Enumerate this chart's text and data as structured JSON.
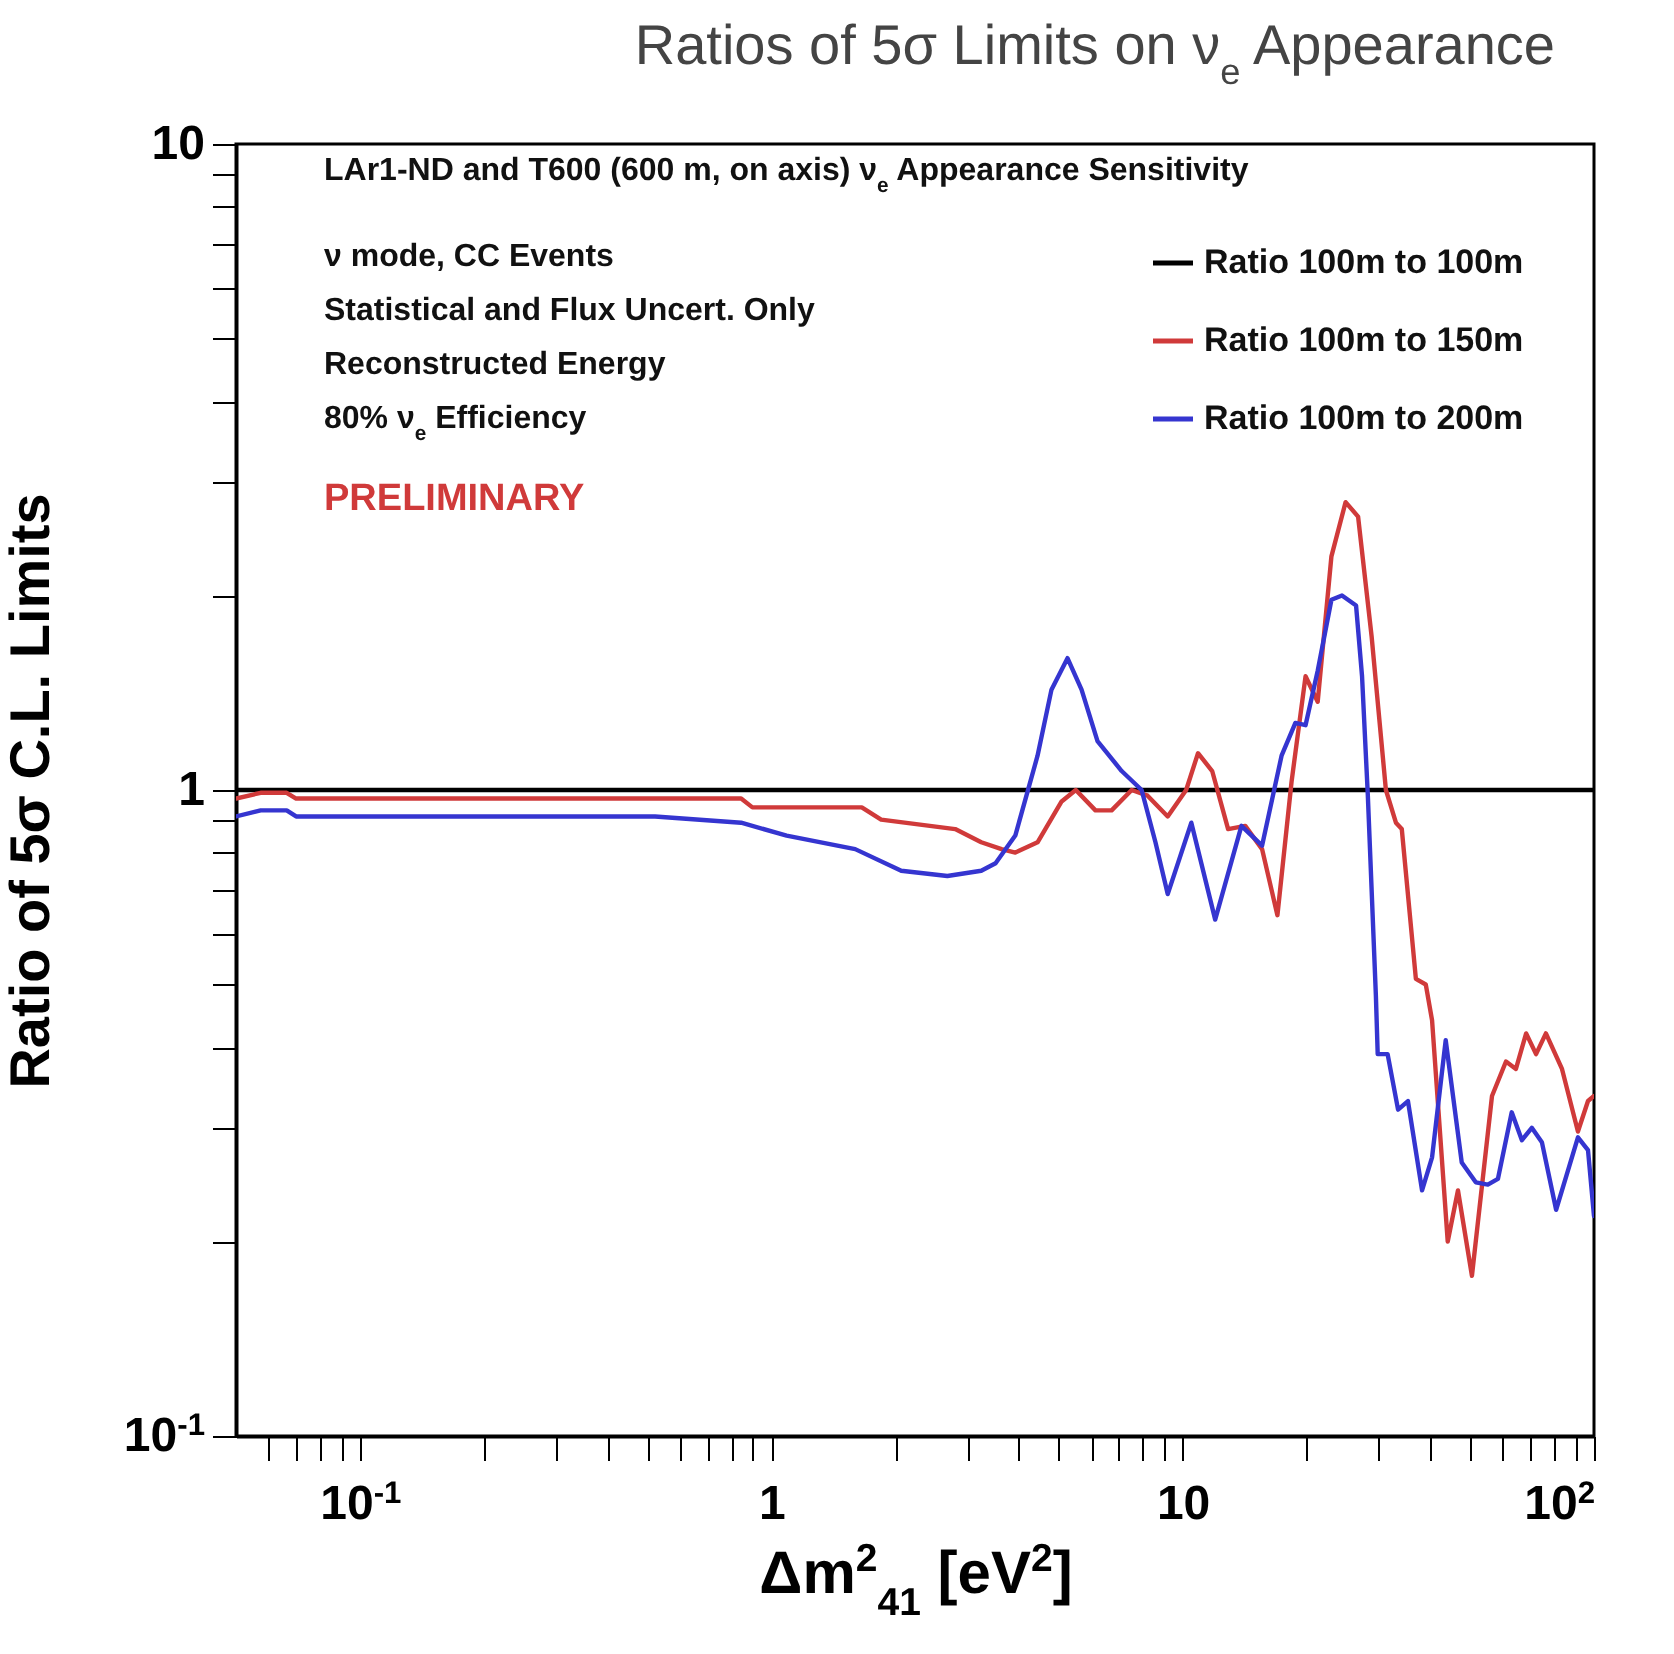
{
  "chart_data": {
    "type": "line",
    "title": "Ratios of 5σ Limits on ν$_{e}$ Appearance",
    "xlabel": "Δm$^{2}$$_{41}$ [eV$^{2}$]",
    "ylabel": "Ratio of 5σ C.L. Limits",
    "log": "xy",
    "legend": "top right",
    "xlim": [
      0.05,
      100
    ],
    "ylim": [
      0.1,
      10
    ],
    "xticks": [
      {
        "value": 0.06,
        "label": null
      },
      {
        "value": 0.07,
        "label": null
      },
      {
        "value": 0.08,
        "label": null
      },
      {
        "value": 0.09,
        "label": null
      },
      {
        "value": 0.1,
        "label": "10$^{-1}$"
      },
      {
        "value": 0.2,
        "label": null
      },
      {
        "value": 0.3,
        "label": null
      },
      {
        "value": 0.4,
        "label": null
      },
      {
        "value": 0.5,
        "label": null
      },
      {
        "value": 0.6,
        "label": null
      },
      {
        "value": 0.7,
        "label": null
      },
      {
        "value": 0.8,
        "label": null
      },
      {
        "value": 0.9,
        "label": null
      },
      1,
      {
        "value": 2,
        "label": null
      },
      {
        "value": 3,
        "label": null
      },
      {
        "value": 4,
        "label": null
      },
      {
        "value": 5,
        "label": null
      },
      {
        "value": 6,
        "label": null
      },
      {
        "value": 7,
        "label": null
      },
      {
        "value": 8,
        "label": null
      },
      {
        "value": 9,
        "label": null
      },
      10,
      {
        "value": 20,
        "label": null
      },
      {
        "value": 30,
        "label": null
      },
      {
        "value": 40,
        "label": null
      },
      {
        "value": 50,
        "label": null
      },
      {
        "value": 60,
        "label": null
      },
      {
        "value": 70,
        "label": null
      },
      {
        "value": 80,
        "label": null
      },
      {
        "value": 90,
        "label": null
      },
      {
        "value": 100,
        "label": "10$^{2}$"
      }
    ],
    "yticks": [
      {
        "value": 0.1,
        "label": "10$^{-1}$"
      },
      {
        "value": 0.2,
        "label": null
      },
      {
        "value": 0.3,
        "label": null
      },
      {
        "value": 0.4,
        "label": null
      },
      {
        "value": 0.5,
        "label": null
      },
      {
        "value": 0.6,
        "label": null
      },
      {
        "value": 0.7,
        "label": null
      },
      {
        "value": 0.8,
        "label": null
      },
      {
        "value": 0.9,
        "label": null
      },
      1,
      {
        "value": 2,
        "label": null
      },
      {
        "value": 3,
        "label": null
      },
      {
        "value": 4,
        "label": null
      },
      {
        "value": 5,
        "label": null
      },
      {
        "value": 6,
        "label": null
      },
      {
        "value": 7,
        "label": null
      },
      {
        "value": 8,
        "label": null
      },
      {
        "value": 9,
        "label": null
      },
      10
    ],
    "annotations": [
      "LAr1-ND and T600 (600 m, on axis)  ν$_{e}$ Appearance Sensitivity",
      "ν mode, CC Events",
      "Statistical and Flux Uncert. Only",
      "Reconstructed Energy",
      "80% ν$_{e}$ Efficiency",
      "PRELIMINARY"
    ],
    "series": [
      {
        "name": "Ratio 100m to 100m",
        "color": "#000000",
        "x": [
          0.05,
          100
        ],
        "values": [
          1,
          1
        ]
      },
      {
        "name": "Ratio 100m to 150m",
        "color": "#d03a3a",
        "x": [
          0.05,
          0.0574,
          0.0664,
          0.07,
          0.373,
          0.845,
          0.9,
          1.66,
          1.85,
          2.8,
          3.24,
          3.63,
          3.92,
          4.44,
          5.08,
          5.5,
          6.14,
          6.72,
          7.52,
          8.22,
          9.2,
          10.2,
          10.9,
          11.8,
          12.9,
          14.2,
          15.6,
          17.0,
          18.4,
          19.9,
          21.3,
          23.0,
          24.9,
          26.7,
          28.8,
          31.2,
          33.0,
          34.1,
          36.9,
          39.0,
          40.4,
          44.1,
          46.7,
          50.5,
          56.5,
          61.1,
          64.6,
          68.4,
          72.3,
          76.4,
          83.6,
          91.4,
          96.7,
          100
        ],
        "values": [
          0.97,
          0.99,
          0.99,
          0.97,
          0.97,
          0.97,
          0.94,
          0.94,
          0.9,
          0.87,
          0.83,
          0.81,
          0.8,
          0.83,
          0.96,
          1.0,
          0.93,
          0.93,
          1.0,
          0.98,
          0.91,
          1.0,
          1.14,
          1.07,
          0.87,
          0.88,
          0.81,
          0.64,
          1.03,
          1.5,
          1.37,
          2.3,
          2.79,
          2.65,
          1.73,
          1.0,
          0.89,
          0.87,
          0.51,
          0.5,
          0.44,
          0.2,
          0.24,
          0.177,
          0.336,
          0.38,
          0.37,
          0.42,
          0.39,
          0.42,
          0.37,
          0.296,
          0.33,
          0.336
        ]
      },
      {
        "name": "Ratio 100m to 200m",
        "color": "#3535d0",
        "x": [
          0.05,
          0.0574,
          0.0664,
          0.07,
          0.522,
          0.845,
          1.09,
          1.6,
          2.07,
          2.68,
          3.24,
          3.51,
          3.92,
          4.44,
          4.8,
          5.25,
          5.68,
          6.21,
          7.11,
          7.95,
          8.59,
          9.2,
          10.5,
          12.0,
          13.9,
          15.6,
          17.4,
          18.8,
          19.9,
          21.3,
          23.0,
          24.4,
          26.4,
          27.3,
          28.2,
          29.5,
          29.8,
          31.5,
          33.4,
          35.3,
          38.2,
          40.4,
          43.6,
          47.7,
          51.6,
          55.2,
          58.4,
          63.1,
          66.8,
          70.6,
          74.7,
          80.9,
          86.5,
          91.4,
          96.7,
          100
        ],
        "values": [
          0.91,
          0.93,
          0.93,
          0.91,
          0.91,
          0.89,
          0.85,
          0.81,
          0.75,
          0.736,
          0.75,
          0.77,
          0.85,
          1.13,
          1.43,
          1.6,
          1.43,
          1.19,
          1.07,
          1.0,
          0.83,
          0.69,
          0.89,
          0.63,
          0.88,
          0.82,
          1.13,
          1.27,
          1.26,
          1.53,
          1.97,
          2.0,
          1.93,
          1.5,
          0.98,
          0.48,
          0.39,
          0.39,
          0.32,
          0.33,
          0.24,
          0.27,
          0.41,
          0.265,
          0.247,
          0.245,
          0.25,
          0.317,
          0.287,
          0.3,
          0.285,
          0.224,
          0.258,
          0.29,
          0.277,
          0.219
        ]
      }
    ]
  }
}
